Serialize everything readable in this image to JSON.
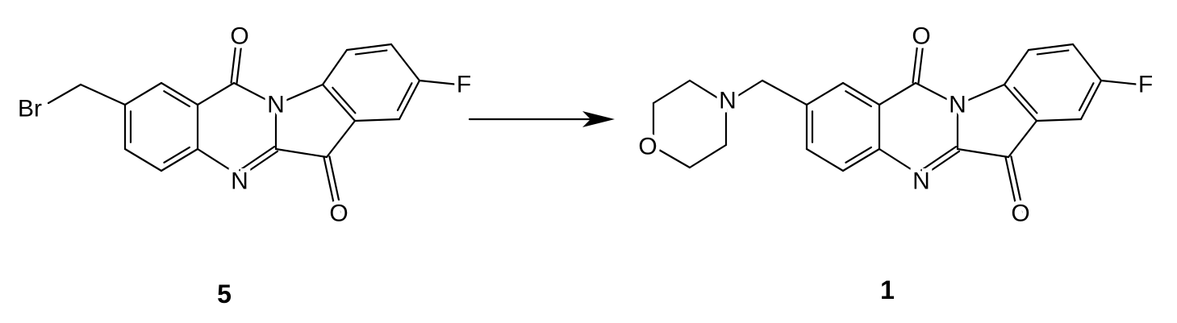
{
  "compounds": [
    {
      "id": "5",
      "atoms": [
        "Br",
        "O",
        "N",
        "F",
        "N",
        "O"
      ]
    },
    {
      "id": "1",
      "atoms": [
        "O",
        "N",
        "O",
        "N",
        "F",
        "N",
        "O"
      ]
    }
  ]
}
